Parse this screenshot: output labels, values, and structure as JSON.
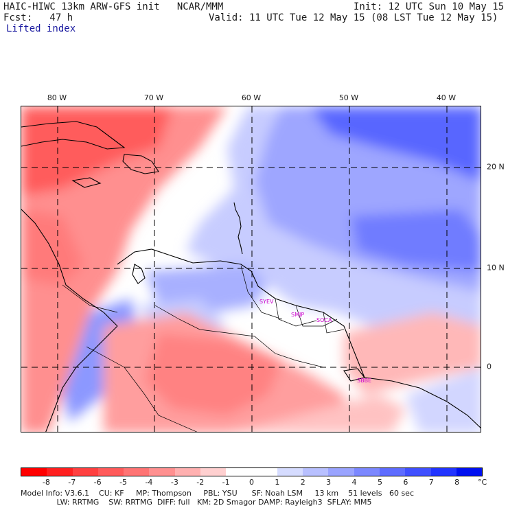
{
  "header": {
    "title": "HAIC-HIWC 13km ARW-GFS init   NCAR/MMM",
    "fcst": "Fcst:   47 h",
    "field": "Lifted index",
    "init": "Init: 12 UTC Sun 10 May 15",
    "valid": "Valid: 11 UTC Tue 12 May 15 (08 LST Tue 12 May 15)"
  },
  "map": {
    "lon_labels": [
      "80 W",
      "70 W",
      "60 W",
      "50 W",
      "40 W"
    ],
    "lat_labels": [
      "20 N",
      "10 N",
      "0"
    ],
    "stations": [
      "SYEV",
      "SMJP",
      "SOCA",
      "SBBE"
    ],
    "station_color": "#cc00cc"
  },
  "colorbar": {
    "ticks": [
      "-8",
      "-7",
      "-6",
      "-5",
      "-4",
      "-3",
      "-2",
      "-1",
      "0",
      "1",
      "2",
      "3",
      "4",
      "5",
      "6",
      "7",
      "8"
    ],
    "unit": "°C",
    "colors": [
      "#ff0000",
      "#ff2020",
      "#ff4040",
      "#ff5a5a",
      "#ff7474",
      "#ff9090",
      "#ffb0b0",
      "#ffd0d0",
      "#ffffff",
      "#ffffff",
      "#d6dcff",
      "#b8c0ff",
      "#9aa4ff",
      "#7c88ff",
      "#5e6cff",
      "#4050ff",
      "#2234ff",
      "#0010f0"
    ]
  },
  "footer": {
    "line1": "Model Info: V3.6.1    CU: KF     MP: Thompson     PBL: YSU      SF: Noah LSM     13 km    51 levels   60 sec",
    "line2": "               LW: RRTMG    SW: RRTMG  DIFF: full   KM: 2D Smagor DAMP: Rayleigh3  SFLAY: MM5"
  }
}
